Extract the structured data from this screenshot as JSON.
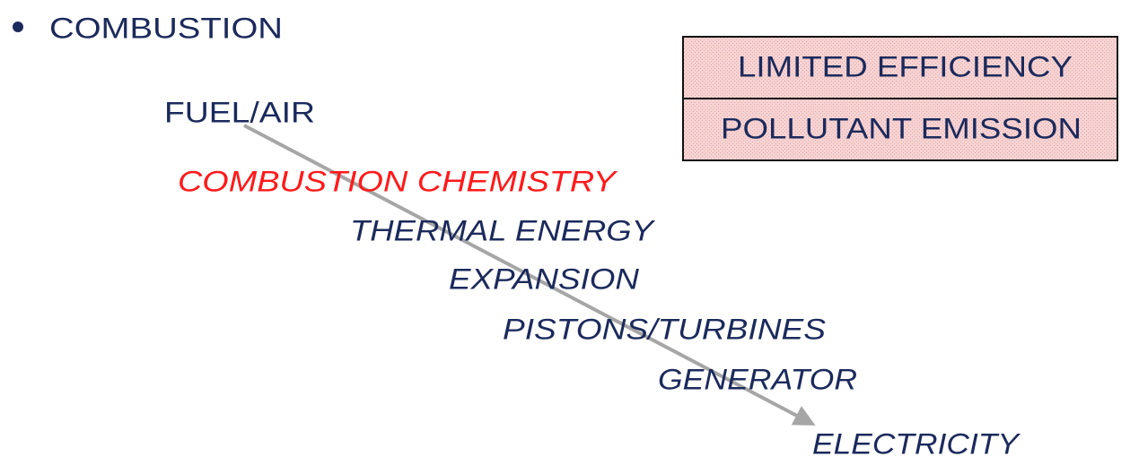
{
  "heading": "COMBUSTION",
  "process": {
    "start": "FUEL/AIR",
    "steps": [
      "COMBUSTION CHEMISTRY",
      "THERMAL ENERGY",
      "EXPANSION",
      "PISTONS/TURBINES",
      "GENERATOR",
      "ELECTRICITY"
    ]
  },
  "drawbacks": [
    "LIMITED EFFICIENCY",
    "POLLUTANT EMISSION"
  ]
}
